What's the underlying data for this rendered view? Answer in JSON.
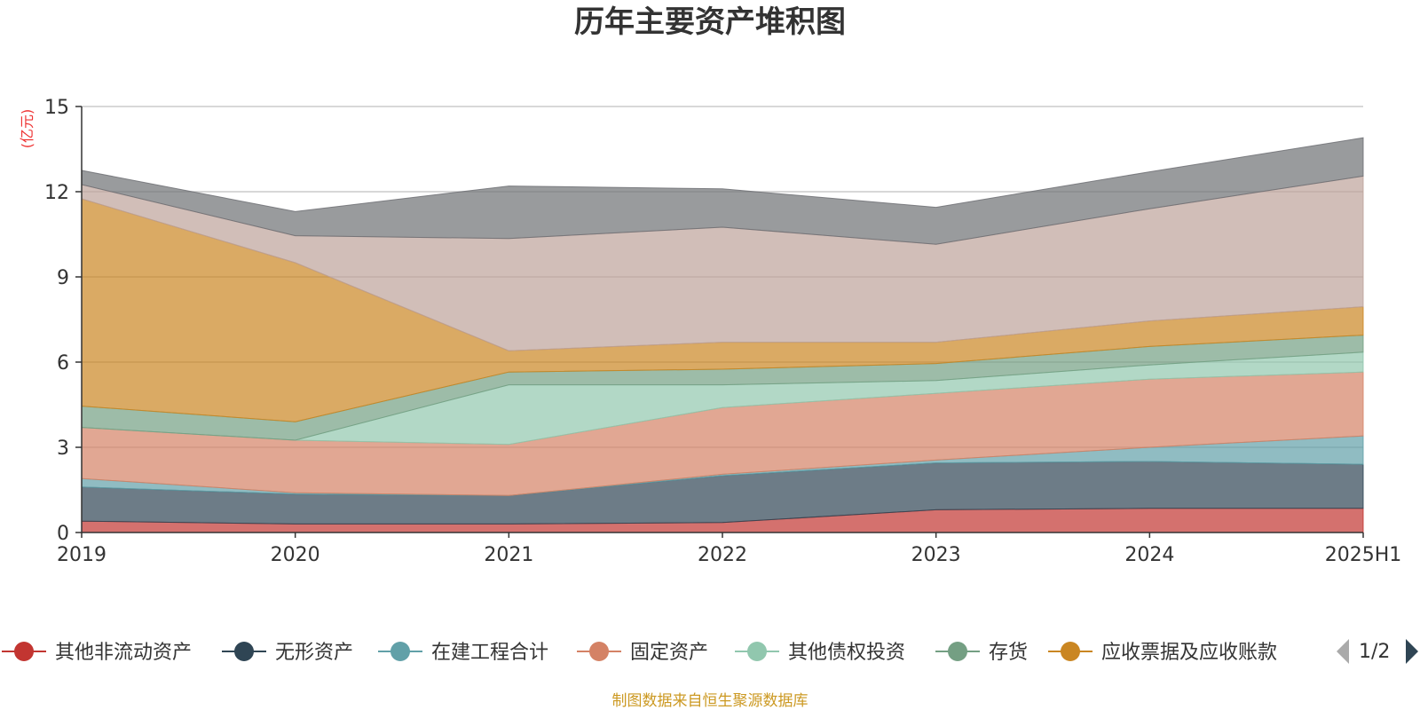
{
  "chart_data": {
    "type": "area",
    "stacked": true,
    "title": "历年主要资产堆积图",
    "unit_label": "(亿元)",
    "categories": [
      "2019",
      "2020",
      "2021",
      "2022",
      "2023",
      "2024",
      "2025H1"
    ],
    "ylim": [
      0,
      15
    ],
    "yticks": [
      0,
      3,
      6,
      9,
      12,
      15
    ],
    "grid": true,
    "legend_position": "bottom",
    "legend_page": "1/2",
    "source_note": "制图数据来自恒生聚源数据库",
    "series": [
      {
        "name": "其他非流动资产",
        "color": "#c23531",
        "values": [
          0.4,
          0.3,
          0.3,
          0.35,
          0.8,
          0.85,
          0.85
        ]
      },
      {
        "name": "无形资产",
        "color": "#2f4554",
        "values": [
          1.2,
          1.05,
          1.0,
          1.65,
          1.65,
          1.65,
          1.55
        ]
      },
      {
        "name": "在建工程合计",
        "color": "#61a0a8",
        "values": [
          0.3,
          0.05,
          0.0,
          0.05,
          0.1,
          0.5,
          1.0
        ]
      },
      {
        "name": "固定资产",
        "color": "#d48265",
        "values": [
          1.8,
          1.85,
          1.8,
          2.35,
          2.35,
          2.4,
          2.25
        ]
      },
      {
        "name": "其他债权投资",
        "color": "#91c7ae",
        "values": [
          0.0,
          0.0,
          2.1,
          0.8,
          0.45,
          0.5,
          0.7
        ]
      },
      {
        "name": "存货",
        "color": "#749f83",
        "values": [
          0.75,
          0.65,
          0.45,
          0.55,
          0.6,
          0.65,
          0.6
        ]
      },
      {
        "name": "应收票据及应收账款",
        "color": "#ca8622",
        "values": [
          7.3,
          5.6,
          0.75,
          0.95,
          0.75,
          0.9,
          1.0
        ]
      },
      {
        "name": "",
        "color": "#bda29a",
        "values": [
          0.5,
          0.95,
          3.95,
          4.05,
          3.45,
          3.95,
          4.6
        ]
      },
      {
        "name": "",
        "color": "#6e7074",
        "values": [
          0.5,
          0.85,
          1.85,
          1.35,
          1.3,
          1.3,
          1.35
        ]
      }
    ]
  }
}
